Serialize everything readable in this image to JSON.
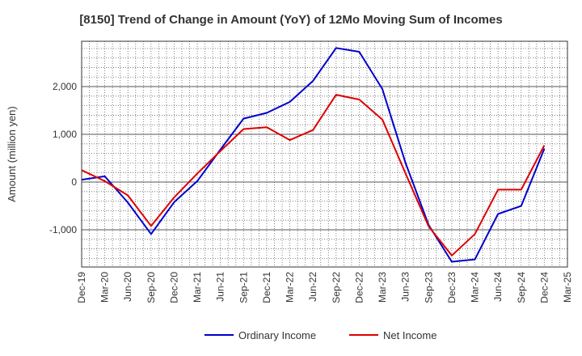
{
  "chart_data": {
    "type": "line",
    "title": "[8150]  Trend of Change in Amount (YoY) of 12Mo Moving Sum of Incomes",
    "ylabel": "Amount (million yen)",
    "xlabel": "",
    "ylim": [
      -1780,
      2950
    ],
    "yticks": [
      2000,
      1000,
      0,
      -1000
    ],
    "ytick_labels": [
      "2,000",
      "1,000",
      "0",
      "-1,000"
    ],
    "x_ticks": [
      "Dec-19",
      "Mar-20",
      "Jun-20",
      "Sep-20",
      "Dec-20",
      "Mar-21",
      "Jun-21",
      "Sep-21",
      "Dec-21",
      "Mar-22",
      "Jun-22",
      "Sep-22",
      "Dec-22",
      "Mar-23",
      "Jun-23",
      "Sep-23",
      "Dec-23",
      "Mar-24",
      "Jun-24",
      "Sep-24",
      "Dec-24",
      "Mar-25"
    ],
    "grid": true,
    "legend_position": "bottom",
    "series": [
      {
        "name": "Ordinary Income",
        "color": "#0000cc",
        "values": [
          50,
          120,
          -430,
          -1090,
          -420,
          20,
          680,
          1330,
          1450,
          1680,
          2120,
          2810,
          2730,
          1950,
          400,
          -900,
          -1670,
          -1620,
          -670,
          -500,
          700
        ]
      },
      {
        "name": "Net Income",
        "color": "#dd0000",
        "values": [
          250,
          20,
          -280,
          -920,
          -320,
          180,
          650,
          1110,
          1150,
          880,
          1090,
          1830,
          1730,
          1310,
          180,
          -930,
          -1540,
          -1090,
          -160,
          -160,
          770
        ]
      }
    ]
  }
}
